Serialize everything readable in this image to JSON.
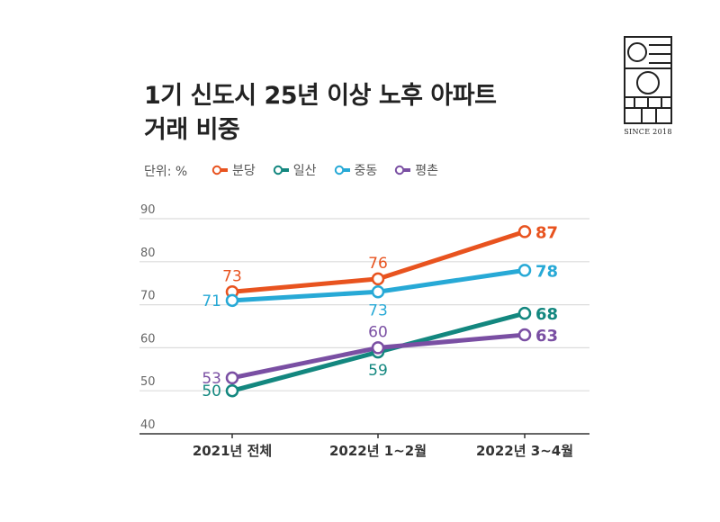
{
  "title_line1": "1기 신도시 25년 이상  노후 아파트",
  "title_line2": "거래 비중",
  "unit_label": "단위: %",
  "logo_text": "SINCE 2018",
  "chart_data": {
    "type": "line",
    "title": "1기 신도시 25년 이상  노후 아파트 거래 비중",
    "ylabel": "단위: %",
    "categories": [
      "2021년 전체",
      "2022년 1~2월",
      "2022년 3~4월"
    ],
    "ylim": [
      40,
      90
    ],
    "yticks": [
      90,
      80,
      70,
      60,
      50,
      40
    ],
    "grid": true,
    "legend_position": "top-left",
    "series": [
      {
        "name": "분당",
        "color": "#e8531f",
        "values": [
          73,
          76,
          87
        ],
        "label_pos": [
          "above",
          "above",
          "right"
        ]
      },
      {
        "name": "일산",
        "color": "#13877f",
        "values": [
          50,
          59,
          68
        ],
        "label_pos": [
          "left",
          "below",
          "right"
        ]
      },
      {
        "name": "중동",
        "color": "#27a9d6",
        "values": [
          71,
          73,
          78
        ],
        "label_pos": [
          "left",
          "below",
          "right"
        ]
      },
      {
        "name": "평촌",
        "color": "#7a4fa3",
        "values": [
          53,
          60,
          63
        ],
        "label_pos": [
          "left",
          "above",
          "right"
        ]
      }
    ]
  }
}
